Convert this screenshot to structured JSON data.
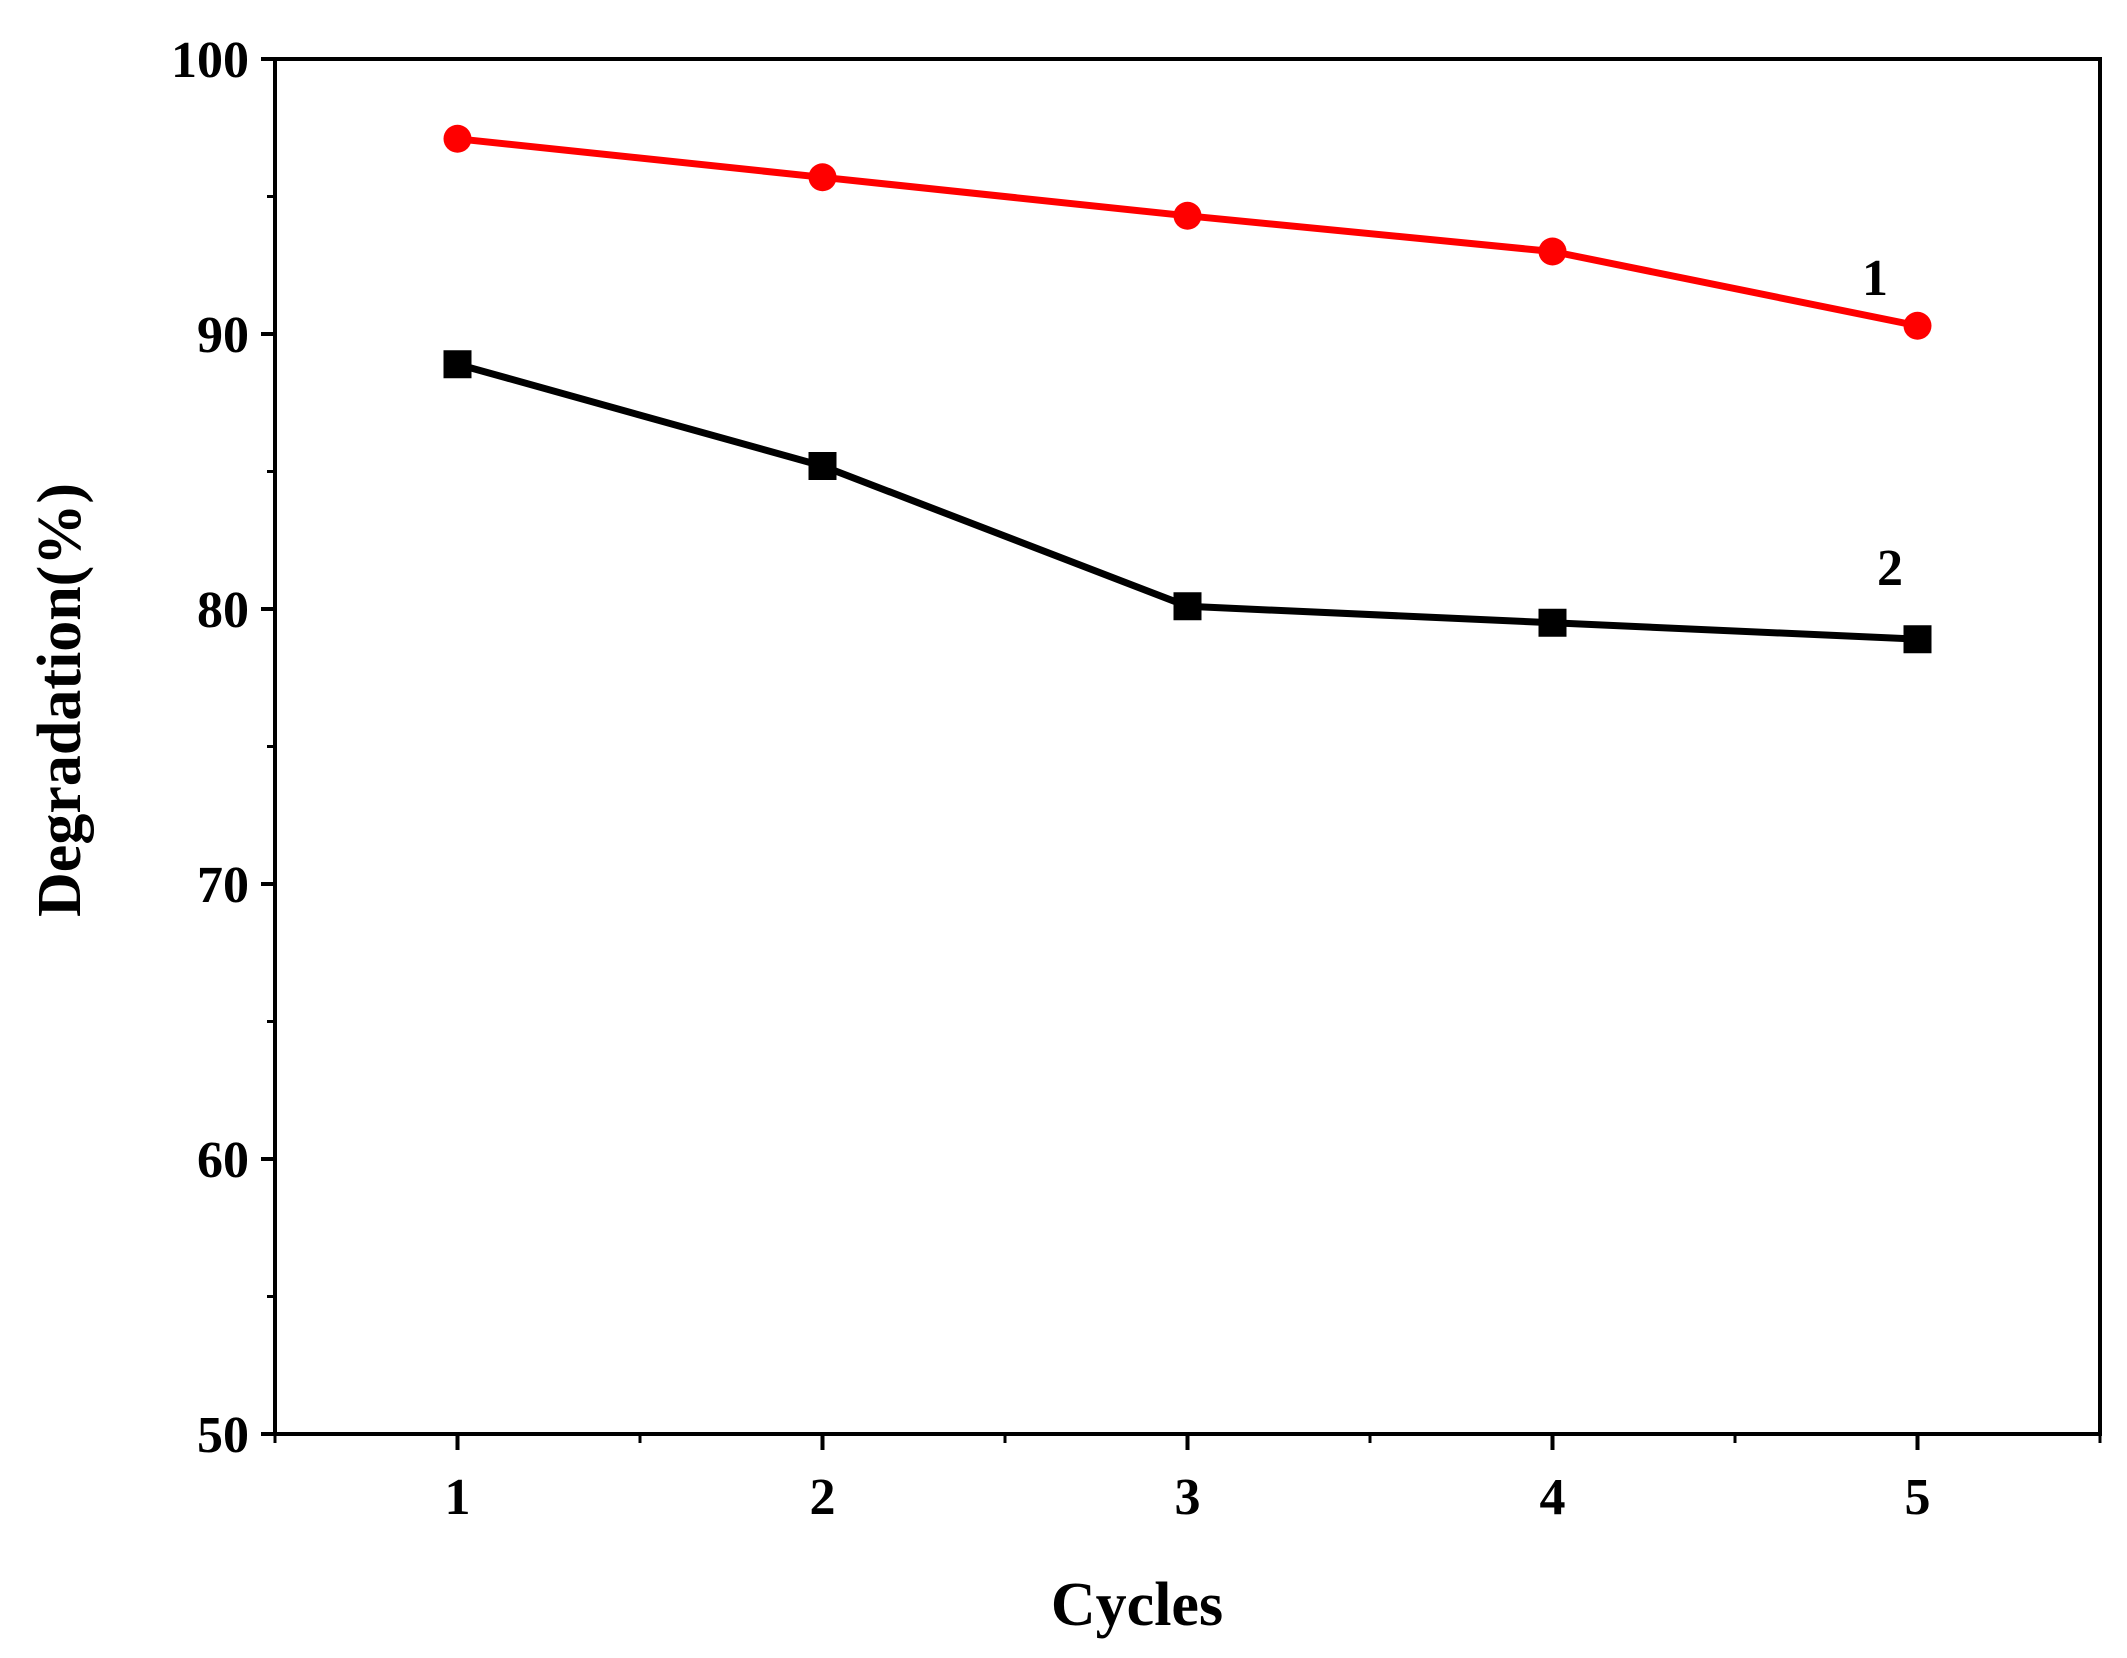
{
  "chart_data": {
    "type": "line",
    "title": "",
    "xlabel": "Cycles",
    "ylabel": "Degradation(%)",
    "x": [
      1,
      2,
      3,
      4,
      5
    ],
    "xlim": [
      0.5,
      5.5
    ],
    "ylim": [
      50,
      100
    ],
    "xticks": [
      "1",
      "2",
      "3",
      "4",
      "5"
    ],
    "yticks": [
      "50",
      "60",
      "70",
      "80",
      "90",
      "100"
    ],
    "grid": false,
    "series": [
      {
        "name": "1",
        "label": "1",
        "color": "#ff0000",
        "marker": "circle",
        "values": [
          97.1,
          95.7,
          94.3,
          93.0,
          90.3
        ]
      },
      {
        "name": "2",
        "label": "2",
        "color": "#000000",
        "marker": "square",
        "values": [
          88.9,
          85.2,
          80.1,
          79.5,
          78.9
        ]
      }
    ]
  }
}
